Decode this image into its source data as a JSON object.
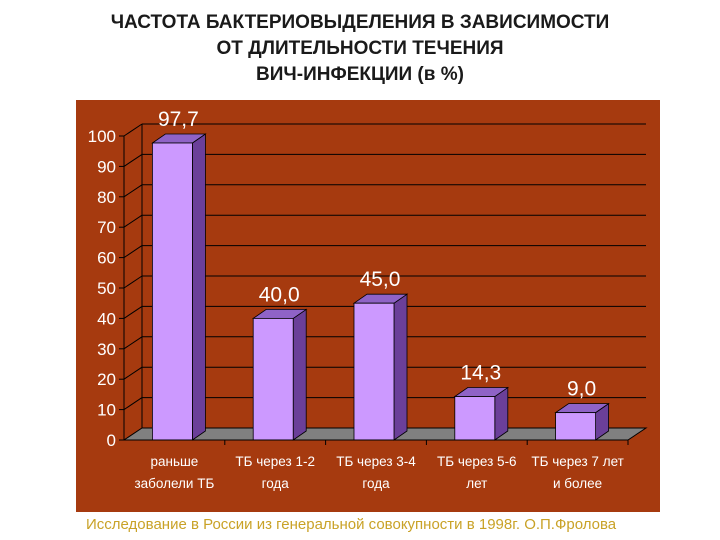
{
  "title_lines": [
    "ЧАСТОТА БАКТЕРИОВЫДЕЛЕНИЯ В ЗАВИСИМОСТИ",
    "ОТ ДЛИТЕЛЬНОСТИ ТЕЧЕНИЯ",
    "ВИЧ-ИНФЕКЦИИ (в %)"
  ],
  "footnote": "Исследование в России из генеральной совокупности в 1998г. О.П.Фролова",
  "colors": {
    "panel": "#a63a0f",
    "bar_front": "#cc99ff",
    "bar_side": "#6b3f99",
    "bar_top": "#8f63c7",
    "floor": "#808080",
    "grid": "#000000",
    "text_light": "#ffffff",
    "footnote": "#c9a227"
  },
  "chart_data": {
    "type": "bar",
    "style": "3d",
    "categories": [
      [
        "раньше",
        "заболели ТБ"
      ],
      [
        "ТБ через 1-2",
        "года"
      ],
      [
        "ТБ через 3-4",
        "года"
      ],
      [
        "ТБ через 5-6",
        "лет"
      ],
      [
        "ТБ через 7 лет",
        "и более"
      ]
    ],
    "values": [
      97.7,
      40.0,
      45.0,
      14.3,
      9.0
    ],
    "value_labels": [
      "97,7",
      "40,0",
      "45,0",
      "14,3",
      "9,0"
    ],
    "ylim": [
      0,
      100
    ],
    "yticks": [
      0,
      10,
      20,
      30,
      40,
      50,
      60,
      70,
      80,
      90,
      100
    ],
    "grid": true,
    "legend": "none"
  }
}
